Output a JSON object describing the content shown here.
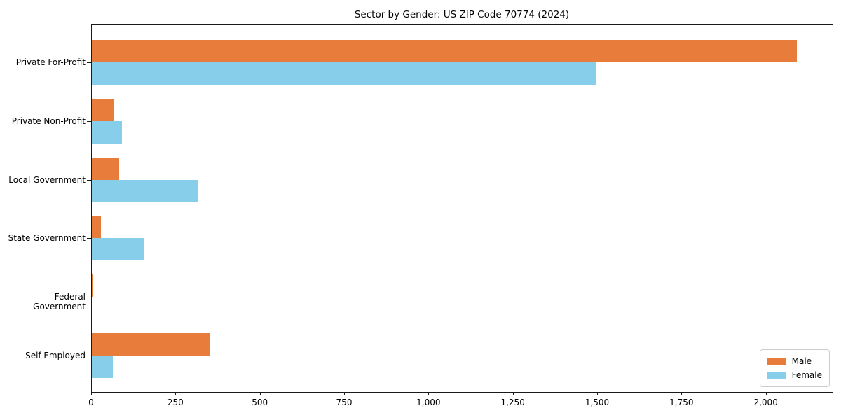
{
  "chart_data": {
    "type": "bar",
    "orientation": "horizontal",
    "title": "Sector by Gender: US ZIP Code 70774 (2024)",
    "categories": [
      "Private For-Profit",
      "Private Non-Profit",
      "Local Government",
      "State Government",
      "Federal Government",
      "Self-Employed"
    ],
    "series": [
      {
        "name": "Male",
        "color": "#e87d3b",
        "values": [
          2090,
          66,
          81,
          27,
          4,
          349
        ]
      },
      {
        "name": "Female",
        "color": "#87ceeb",
        "values": [
          1495,
          89,
          316,
          154,
          0,
          62
        ]
      }
    ],
    "xlabel": "",
    "ylabel": "",
    "xlim": [
      0,
      2198
    ],
    "x_ticks": [
      {
        "value": 0,
        "label": "0"
      },
      {
        "value": 250,
        "label": "250"
      },
      {
        "value": 500,
        "label": "500"
      },
      {
        "value": 750,
        "label": "750"
      },
      {
        "value": 1000,
        "label": "1,000"
      },
      {
        "value": 1250,
        "label": "1,250"
      },
      {
        "value": 1500,
        "label": "1,500"
      },
      {
        "value": 1750,
        "label": "1,750"
      },
      {
        "value": 2000,
        "label": "2,000"
      }
    ],
    "legend": {
      "position": "lower-right",
      "entries": [
        "Male",
        "Female"
      ]
    },
    "grid": false,
    "axis_color": "#1a1a1a",
    "text_color": "#000000"
  }
}
